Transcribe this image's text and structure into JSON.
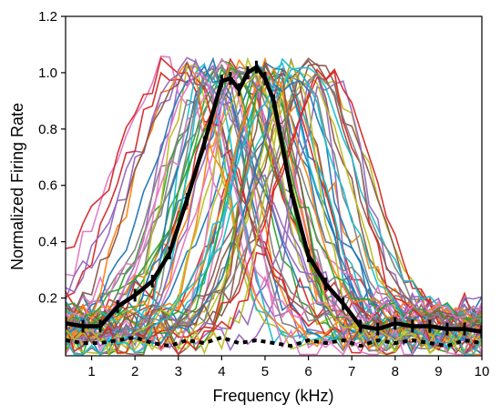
{
  "chart_data": {
    "type": "line",
    "title": "",
    "xlabel": "Frequency (kHz)",
    "ylabel": "Normalized Firing Rate",
    "xlim": [
      0.4,
      10
    ],
    "ylim": [
      -0.005,
      1.2
    ],
    "xticks": [
      1,
      2,
      3,
      4,
      5,
      6,
      7,
      8,
      9,
      10
    ],
    "xtick_labels": [
      "1",
      "2",
      "3",
      "4",
      "5",
      "6",
      "7",
      "8",
      "9",
      "10"
    ],
    "yticks": [
      0.2,
      0.4,
      0.6,
      0.8,
      1.0,
      1.2
    ],
    "ytick_labels": [
      "0.2",
      "0.4",
      "0.6",
      "0.8",
      "1.0",
      "1.2"
    ],
    "grid": false,
    "legend": "none",
    "individual_colors": [
      "#1f77b4",
      "#ff7f0e",
      "#2ca02c",
      "#d62728",
      "#9467bd",
      "#8c564b",
      "#e377c2",
      "#7f7f7f",
      "#bcbd22",
      "#17becf"
    ],
    "individual_curve_count": 60,
    "individual_curves_note": "approximate tuning curves, many overlapping",
    "mean_series": {
      "color": "#000000",
      "style": "solid",
      "x": [
        0.4,
        0.8,
        1.2,
        1.6,
        2.0,
        2.4,
        2.8,
        3.2,
        3.6,
        4.0,
        4.2,
        4.4,
        4.6,
        4.8,
        5.0,
        5.2,
        5.6,
        6.0,
        6.4,
        6.8,
        7.2,
        7.6,
        8.0,
        8.4,
        8.8,
        9.2,
        9.6,
        10.0
      ],
      "y": [
        0.11,
        0.1,
        0.1,
        0.17,
        0.21,
        0.26,
        0.36,
        0.55,
        0.75,
        0.97,
        0.98,
        0.94,
        1.0,
        1.02,
        0.98,
        0.9,
        0.58,
        0.35,
        0.25,
        0.18,
        0.1,
        0.09,
        0.11,
        0.1,
        0.1,
        0.09,
        0.09,
        0.08
      ]
    },
    "baseline_series": {
      "color": "#000000",
      "style": "dotted",
      "x": [
        0.4,
        0.8,
        1.2,
        1.6,
        2.0,
        2.4,
        2.8,
        3.2,
        3.6,
        4.0,
        4.4,
        4.8,
        5.2,
        5.6,
        6.0,
        6.4,
        6.8,
        7.2,
        7.6,
        8.0,
        8.4,
        8.8,
        9.2,
        9.6,
        10.0
      ],
      "y": [
        0.05,
        0.04,
        0.04,
        0.05,
        0.06,
        0.04,
        0.03,
        0.05,
        0.04,
        0.06,
        0.04,
        0.05,
        0.04,
        0.03,
        0.05,
        0.04,
        0.05,
        0.03,
        0.05,
        0.04,
        0.05,
        0.04,
        0.03,
        0.05,
        0.04
      ]
    }
  }
}
